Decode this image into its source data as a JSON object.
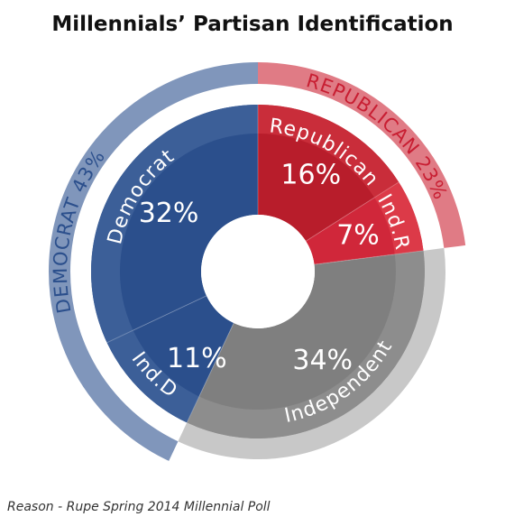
{
  "chart_data": {
    "type": "donut",
    "title": "Millennials’ Partisan Identification",
    "source": "Reason - Rupe Spring 2014 Millennial Poll",
    "inner_slices": [
      {
        "label": "Democrat",
        "value": 32,
        "value_label": "32%",
        "color": "#2b4f8c"
      },
      {
        "label": "Ind.D",
        "value": 11,
        "value_label": "11%",
        "color": "#2b4f8c"
      },
      {
        "label": "Independent",
        "value": 34,
        "value_label": "34%",
        "color": "#7f7f7f"
      },
      {
        "label": "Ind.R",
        "value": 7,
        "value_label": "7%",
        "color": "#d0273a"
      },
      {
        "label": "Republican",
        "value": 16,
        "value_label": "16%",
        "color": "#b81d2b"
      }
    ],
    "outer_groups": [
      {
        "label": "DEMOCRAT 43%",
        "value": 43,
        "color": "#8096bb"
      },
      {
        "label": "REPUBLICAN 23%",
        "value": 23,
        "color": "#e07b85"
      }
    ]
  }
}
